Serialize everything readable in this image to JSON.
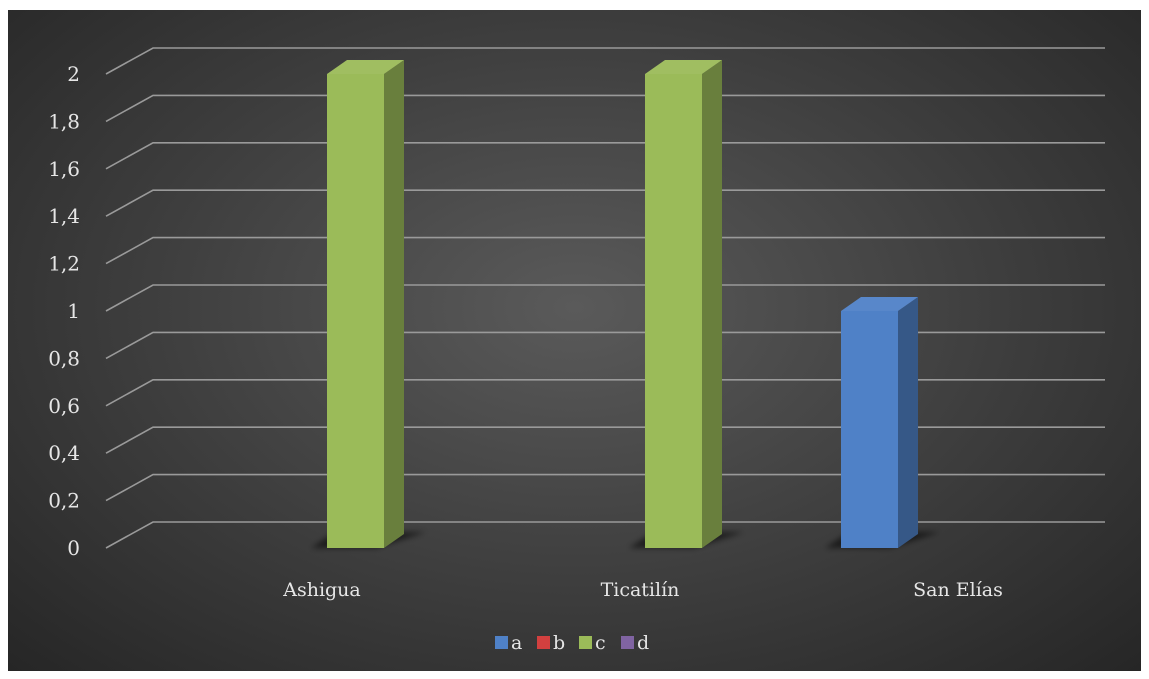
{
  "chart_data": {
    "type": "bar",
    "style": "3d-clustered-column",
    "categories": [
      "Ashigua",
      "Ticatilín",
      "San Elías"
    ],
    "series": [
      {
        "name": "a",
        "color": "#4f81c7",
        "values": [
          0,
          0,
          1
        ]
      },
      {
        "name": "b",
        "color": "#d2403f",
        "values": [
          0,
          0,
          0
        ]
      },
      {
        "name": "c",
        "color": "#9bbb59",
        "values": [
          2,
          2,
          0
        ]
      },
      {
        "name": "d",
        "color": "#8064a2",
        "values": [
          0,
          0,
          0
        ]
      }
    ],
    "yticks": [
      "0",
      "0,2",
      "0,4",
      "0,6",
      "0,8",
      "1",
      "1,2",
      "1,4",
      "1,6",
      "1,8",
      "2"
    ],
    "ylim": [
      0,
      2
    ],
    "grid": true,
    "legend": "bottom",
    "title": "",
    "xlabel": "",
    "ylabel": ""
  }
}
